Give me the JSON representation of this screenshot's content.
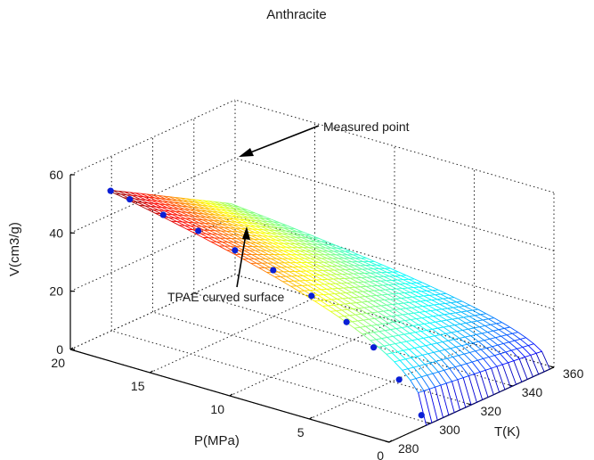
{
  "chart_data": {
    "type": "surface3d",
    "title": "Anthracite",
    "xlabel": "P(MPa)",
    "ylabel": "T(K)",
    "zlabel": "V(cm3/g)",
    "x_ticks": [
      "0",
      "5",
      "10",
      "15",
      "20"
    ],
    "y_ticks": [
      "280",
      "300",
      "320",
      "340",
      "360"
    ],
    "z_ticks": [
      "0",
      "20",
      "40",
      "60"
    ],
    "xlim": [
      0,
      20
    ],
    "ylim": [
      280,
      360
    ],
    "zlim": [
      0,
      60
    ],
    "grid": true,
    "colormap": "jet",
    "surface": {
      "name": "TPAE curved surface",
      "p_range": [
        0,
        20
      ],
      "t_range": [
        298,
        358
      ],
      "v_at_p_max_t_min": 49,
      "v_at_p_max_t_max": 25,
      "v_at_p_min": 0
    },
    "measured_points": {
      "name": "Measured point",
      "points": [
        {
          "P": 19.8,
          "T": 298,
          "V": 49
        },
        {
          "P": 18.6,
          "T": 298,
          "V": 48
        },
        {
          "P": 16.5,
          "T": 298,
          "V": 46
        },
        {
          "P": 14.3,
          "T": 298,
          "V": 44
        },
        {
          "P": 12.0,
          "T": 298,
          "V": 41
        },
        {
          "P": 9.6,
          "T": 298,
          "V": 38
        },
        {
          "P": 7.2,
          "T": 298,
          "V": 33
        },
        {
          "P": 5.0,
          "T": 298,
          "V": 27.5
        },
        {
          "P": 3.3,
          "T": 298,
          "V": 21.5
        },
        {
          "P": 1.7,
          "T": 298,
          "V": 13
        },
        {
          "P": 0.3,
          "T": 298,
          "V": 3
        }
      ]
    },
    "annotations": [
      {
        "text": "Measured point"
      },
      {
        "text": "TPAE curved surface"
      }
    ]
  }
}
